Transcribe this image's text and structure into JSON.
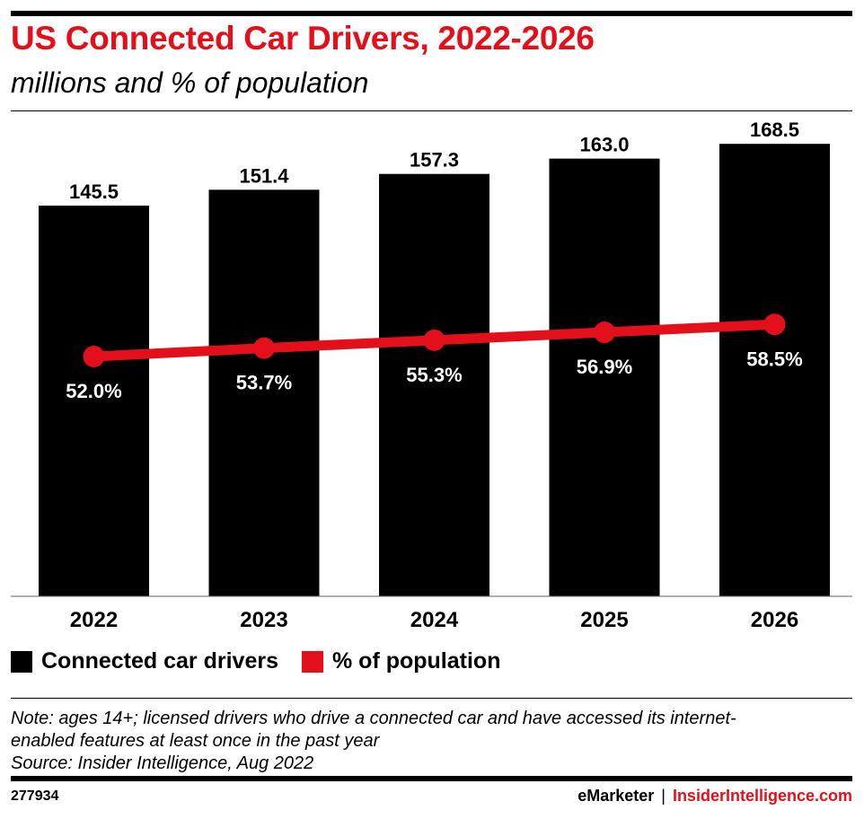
{
  "header": {
    "title": "US Connected Car Drivers, 2022-2026",
    "subtitle": "millions and % of population"
  },
  "colors": {
    "accent": "#e3101b",
    "bar": "#000000"
  },
  "chart_data": {
    "type": "bar",
    "categories": [
      "2022",
      "2023",
      "2024",
      "2025",
      "2026"
    ],
    "series": [
      {
        "name": "Connected car drivers",
        "type": "bar",
        "values": [
          145.5,
          151.4,
          157.3,
          163.0,
          168.5
        ],
        "labels": [
          "145.5",
          "151.4",
          "157.3",
          "163.0",
          "168.5"
        ],
        "color": "#000000"
      },
      {
        "name": "% of population",
        "type": "line",
        "values": [
          52.0,
          53.7,
          55.3,
          56.9,
          58.5
        ],
        "labels": [
          "52.0%",
          "53.7%",
          "55.3%",
          "56.9%",
          "58.5%"
        ],
        "color": "#e3101b"
      }
    ],
    "grid": false,
    "legend": "bottom-left"
  },
  "legend": {
    "bars_label": "Connected car drivers",
    "line_label": "% of population"
  },
  "note": {
    "line1": "Note: ages 14+; licensed drivers who drive a connected car and have accessed its internet-",
    "line2": "enabled features at least once in the past year",
    "source": "Source: Insider Intelligence, Aug 2022"
  },
  "footer": {
    "chart_id": "277934",
    "brand_left": "eMarketer",
    "separator": "|",
    "brand_right": "InsiderIntelligence.com"
  }
}
